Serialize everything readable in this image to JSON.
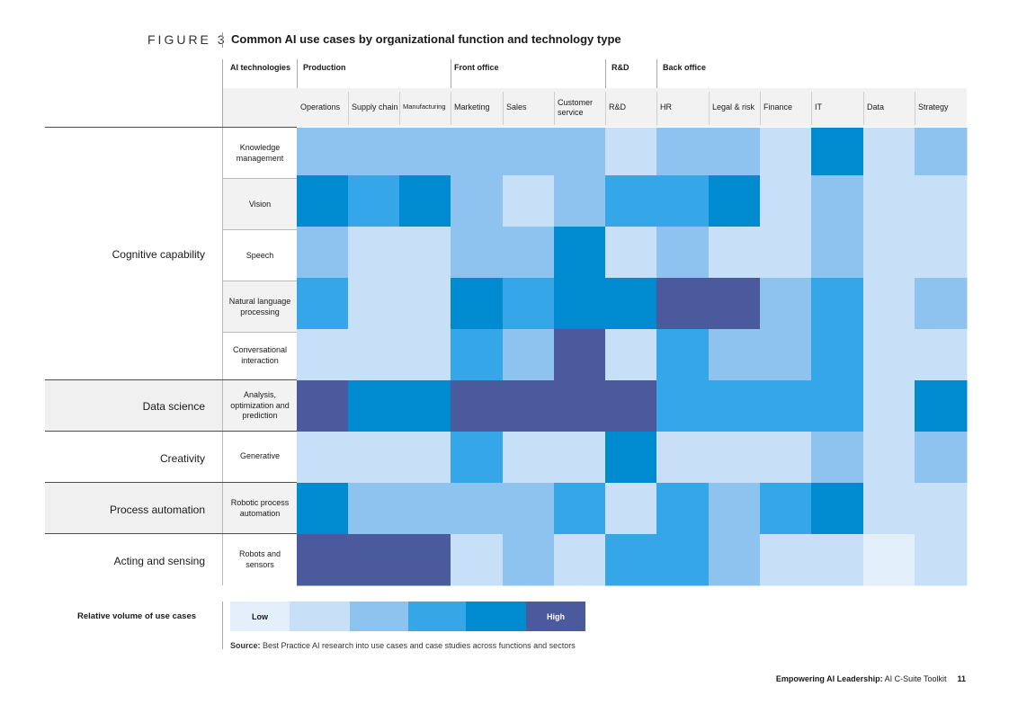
{
  "figure": {
    "number": "FIGURE 3",
    "title": "Common AI use cases by organizational function and technology type"
  },
  "header": {
    "ai_technologies_label": "AI technologies",
    "groups": [
      "Production",
      "Front office",
      "R&D",
      "Back office"
    ]
  },
  "chart_data": {
    "type": "heatmap",
    "title": "Common AI use cases by organizational function and technology type",
    "columns": [
      "Operations",
      "Supply chain",
      "Manufacturing",
      "Marketing",
      "Sales",
      "Customer service",
      "R&D",
      "HR",
      "Legal & risk",
      "Finance",
      "IT",
      "Data",
      "Strategy"
    ],
    "column_groups": [
      {
        "name": "Production",
        "columns": [
          "Operations",
          "Supply chain",
          "Manufacturing"
        ]
      },
      {
        "name": "Front office",
        "columns": [
          "Marketing",
          "Sales",
          "Customer service"
        ]
      },
      {
        "name": "R&D",
        "columns": [
          "R&D"
        ]
      },
      {
        "name": "Back office",
        "columns": [
          "HR",
          "Legal & risk",
          "Finance",
          "IT",
          "Data",
          "Strategy"
        ]
      }
    ],
    "rows": [
      "Knowledge management",
      "Vision",
      "Speech",
      "Natural language processing",
      "Conversational interaction",
      "Analysis, optimization and prediction",
      "Generative",
      "Robotic process automation",
      "Robots and sensors"
    ],
    "categories": [
      {
        "name": "Cognitive capability",
        "rows": 5
      },
      {
        "name": "Data science",
        "rows": 1
      },
      {
        "name": "Creativity",
        "rows": 1
      },
      {
        "name": "Process automation",
        "rows": 1
      },
      {
        "name": "Acting and sensing",
        "rows": 1
      }
    ],
    "values": [
      [
        3,
        3,
        3,
        3,
        3,
        3,
        2,
        3,
        3,
        2,
        5,
        2,
        3
      ],
      [
        5,
        4,
        5,
        3,
        2,
        3,
        4,
        4,
        5,
        2,
        3,
        2,
        2
      ],
      [
        3,
        2,
        2,
        3,
        3,
        5,
        2,
        3,
        2,
        2,
        3,
        2,
        2
      ],
      [
        4,
        2,
        2,
        5,
        4,
        5,
        5,
        6,
        6,
        3,
        4,
        2,
        3
      ],
      [
        2,
        2,
        2,
        4,
        3,
        6,
        2,
        4,
        3,
        3,
        4,
        2,
        2
      ],
      [
        6,
        5,
        5,
        6,
        6,
        6,
        6,
        4,
        4,
        4,
        4,
        2,
        5
      ],
      [
        2,
        2,
        2,
        4,
        2,
        2,
        5,
        2,
        2,
        2,
        3,
        2,
        3
      ],
      [
        5,
        3,
        3,
        3,
        3,
        4,
        2,
        4,
        3,
        4,
        5,
        2,
        2
      ],
      [
        6,
        6,
        6,
        2,
        3,
        2,
        4,
        4,
        3,
        2,
        2,
        1,
        2
      ]
    ],
    "scale": {
      "min": 1,
      "max": 6,
      "low_label": "Low",
      "high_label": "High",
      "label": "Relative volume of use cases"
    },
    "colors": [
      "#e3effb",
      "#c8e0f7",
      "#8ec3ef",
      "#35a6e8",
      "#008bd0",
      "#4a5a9c"
    ]
  },
  "source": {
    "label": "Source:",
    "text": " Best Practice AI research into use cases and case studies across functions and sectors"
  },
  "footer": {
    "bold": "Empowering AI Leadership:",
    "rest": " AI C-Suite Toolkit",
    "page": "11"
  }
}
